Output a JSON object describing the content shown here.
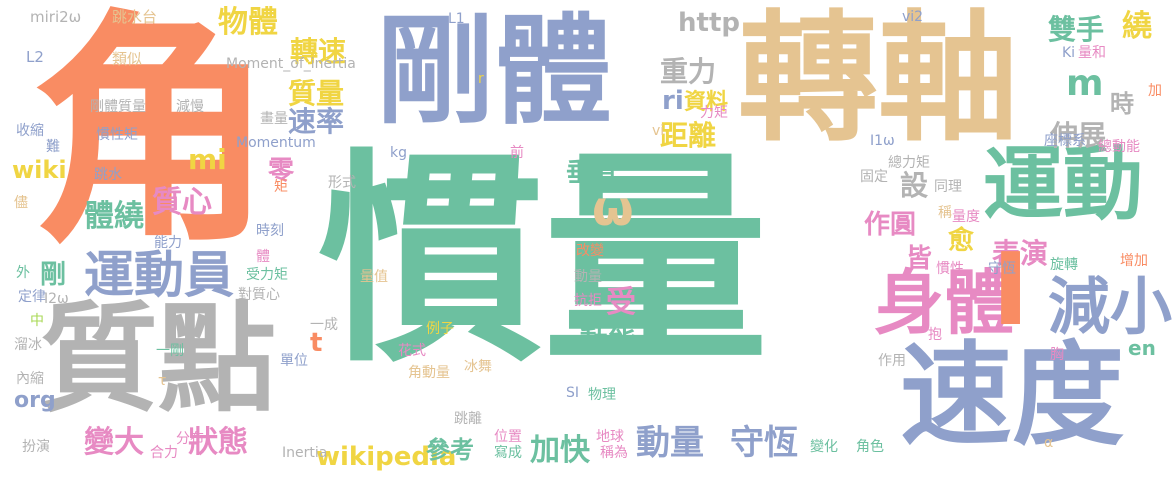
{
  "palette": {
    "green": "#6cc0a0",
    "orange": "#f98c63",
    "blue": "#8fa0cb",
    "tan": "#e5c491",
    "gray": "#b3b3b3",
    "pink": "#e78ac3",
    "yellow": "#f0d543",
    "lime": "#a8d855"
  },
  "words": [
    {
      "text": "慣量",
      "color": "green"
    },
    {
      "text": "角",
      "color": "orange"
    },
    {
      "text": "轉軸",
      "color": "tan"
    },
    {
      "text": "剛體",
      "color": "blue"
    },
    {
      "text": "質點",
      "color": "gray"
    },
    {
      "text": "速度",
      "color": "blue"
    },
    {
      "text": "運動",
      "color": "green"
    },
    {
      "text": "身體",
      "color": "pink"
    },
    {
      "text": "減小",
      "color": "blue"
    },
    {
      "text": "運動員",
      "color": "blue"
    },
    {
      "text": "物體",
      "color": "yellow"
    },
    {
      "text": "轉速",
      "color": "yellow"
    },
    {
      "text": "質量",
      "color": "yellow"
    },
    {
      "text": "速率",
      "color": "blue"
    },
    {
      "text": "ω",
      "color": "tan"
    },
    {
      "text": "雙手",
      "color": "green"
    },
    {
      "text": "繞",
      "color": "yellow"
    },
    {
      "text": "m",
      "color": "green"
    },
    {
      "text": "時",
      "color": "gray"
    },
    {
      "text": "伸展",
      "color": "gray"
    },
    {
      "text": "重力",
      "color": "gray"
    },
    {
      "text": "ri",
      "color": "blue"
    },
    {
      "text": "資料",
      "color": "yellow"
    },
    {
      "text": "距離",
      "color": "yellow"
    },
    {
      "text": "http",
      "color": "gray"
    },
    {
      "text": "mi",
      "color": "yellow"
    },
    {
      "text": "垂直",
      "color": "green"
    },
    {
      "text": "零",
      "color": "pink"
    },
    {
      "text": "體繞",
      "color": "green"
    },
    {
      "text": "質心",
      "color": "pink"
    },
    {
      "text": "設",
      "color": "gray"
    },
    {
      "text": "作圓",
      "color": "pink"
    },
    {
      "text": "皆",
      "color": "pink"
    },
    {
      "text": "愈",
      "color": "yellow"
    },
    {
      "text": "表演",
      "color": "pink"
    },
    {
      "text": "剛",
      "color": "green"
    },
    {
      "text": "wiki",
      "color": "yellow"
    },
    {
      "text": "受",
      "color": "pink"
    },
    {
      "text": "動能",
      "color": "green"
    },
    {
      "text": "t",
      "color": "orange"
    },
    {
      "text": "en",
      "color": "green"
    },
    {
      "text": "org",
      "color": "blue"
    },
    {
      "text": "變大",
      "color": "pink"
    },
    {
      "text": "狀態",
      "color": "pink"
    },
    {
      "text": "wikipedia",
      "color": "yellow"
    },
    {
      "text": "參考",
      "color": "green"
    },
    {
      "text": "加快",
      "color": "green"
    },
    {
      "text": "動量",
      "color": "blue"
    },
    {
      "text": "守恆",
      "color": "blue"
    },
    {
      "text": "I",
      "color": "orange"
    },
    {
      "text": "miri2ω",
      "color": "gray"
    },
    {
      "text": "跳水台",
      "color": "tan"
    },
    {
      "text": "L2",
      "color": "blue"
    },
    {
      "text": "類似",
      "color": "tan"
    },
    {
      "text": "Moment_of_inertia",
      "color": "gray"
    },
    {
      "text": "剛體質量",
      "color": "gray"
    },
    {
      "text": "減慢",
      "color": "gray"
    },
    {
      "text": "收縮",
      "color": "blue"
    },
    {
      "text": "難",
      "color": "blue"
    },
    {
      "text": "慣性矩",
      "color": "blue"
    },
    {
      "text": "Momentum",
      "color": "blue"
    },
    {
      "text": "kg",
      "color": "blue"
    },
    {
      "text": "前",
      "color": "pink"
    },
    {
      "text": "L1",
      "color": "blue"
    },
    {
      "text": "r",
      "color": "yellow"
    },
    {
      "text": "vi",
      "color": "tan"
    },
    {
      "text": "vi2",
      "color": "blue"
    },
    {
      "text": "Ki",
      "color": "blue"
    },
    {
      "text": "量和",
      "color": "pink"
    },
    {
      "text": "加",
      "color": "orange"
    },
    {
      "text": "力矩",
      "color": "pink"
    },
    {
      "text": "I1ω",
      "color": "blue"
    },
    {
      "text": "總力矩",
      "color": "gray"
    },
    {
      "text": "座標系",
      "color": "blue"
    },
    {
      "text": "總動能",
      "color": "pink"
    },
    {
      "text": "同理",
      "color": "gray"
    },
    {
      "text": "固定",
      "color": "gray"
    },
    {
      "text": "稱",
      "color": "tan"
    },
    {
      "text": "量度",
      "color": "pink"
    },
    {
      "text": "慣性",
      "color": "pink"
    },
    {
      "text": "守恆",
      "color": "blue"
    },
    {
      "text": "旋轉",
      "color": "green"
    },
    {
      "text": "增加",
      "color": "orange"
    },
    {
      "text": "抱",
      "color": "pink"
    },
    {
      "text": "胸",
      "color": "pink"
    },
    {
      "text": "作用",
      "color": "gray"
    },
    {
      "text": "變化",
      "color": "green"
    },
    {
      "text": "角色",
      "color": "green"
    },
    {
      "text": "α",
      "color": "tan"
    },
    {
      "text": "儘",
      "color": "tan"
    },
    {
      "text": "外",
      "color": "green"
    },
    {
      "text": "定律",
      "color": "blue"
    },
    {
      "text": "I2ω",
      "color": "gray"
    },
    {
      "text": "中",
      "color": "lime"
    },
    {
      "text": "溜冰",
      "color": "gray"
    },
    {
      "text": "內縮",
      "color": "gray"
    },
    {
      "text": "扮演",
      "color": "gray"
    },
    {
      "text": "跳水",
      "color": "blue"
    },
    {
      "text": "能力",
      "color": "blue"
    },
    {
      "text": "時刻",
      "color": "blue"
    },
    {
      "text": "體",
      "color": "pink"
    },
    {
      "text": "受力矩",
      "color": "green"
    },
    {
      "text": "對質心",
      "color": "gray"
    },
    {
      "text": "一成",
      "color": "gray"
    },
    {
      "text": "一剛",
      "color": "green"
    },
    {
      "text": "單位",
      "color": "blue"
    },
    {
      "text": "τ",
      "color": "tan"
    },
    {
      "text": "分布",
      "color": "pink"
    },
    {
      "text": "合力",
      "color": "pink"
    },
    {
      "text": "Inertia",
      "color": "gray"
    },
    {
      "text": "量值",
      "color": "tan"
    },
    {
      "text": "例子",
      "color": "yellow"
    },
    {
      "text": "花式",
      "color": "pink"
    },
    {
      "text": "冰舞",
      "color": "tan"
    },
    {
      "text": "角動量",
      "color": "tan"
    },
    {
      "text": "SI",
      "color": "blue"
    },
    {
      "text": "物理",
      "color": "green"
    },
    {
      "text": "跳離",
      "color": "gray"
    },
    {
      "text": "位置",
      "color": "pink"
    },
    {
      "text": "寫成",
      "color": "green"
    },
    {
      "text": "地球",
      "color": "pink"
    },
    {
      "text": "稱為",
      "color": "pink"
    },
    {
      "text": "改變",
      "color": "orange"
    },
    {
      "text": "動量",
      "color": "gray"
    },
    {
      "text": "抗拒",
      "color": "pink"
    },
    {
      "text": "形式",
      "color": "gray"
    },
    {
      "text": "矩",
      "color": "orange"
    },
    {
      "text": "畫量",
      "color": "gray"
    }
  ]
}
